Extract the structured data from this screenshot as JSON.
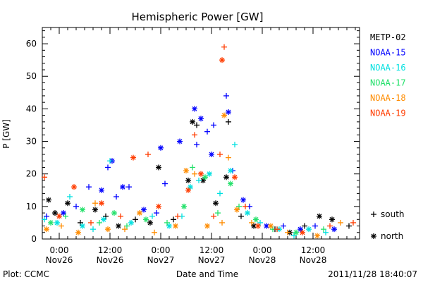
{
  "chart_data": {
    "type": "scatter",
    "title": "Hemispheric Power [GW]",
    "xlabel": "Date and Time",
    "ylabel": "P [GW]",
    "ylim": [
      0,
      65
    ],
    "xlim_hours_note_free": null,
    "xlim": [
      "2011-11-25 20:00",
      "2011-11-28 23:00"
    ],
    "yticks": [
      0,
      10,
      20,
      30,
      40,
      50,
      60
    ],
    "xticks": [
      {
        "time": "2011-11-26 00:00",
        "label": "0:00",
        "date": "Nov26"
      },
      {
        "time": "2011-11-26 12:00",
        "label": "12:00",
        "date": "Nov26"
      },
      {
        "time": "2011-11-27 00:00",
        "label": "0:00",
        "date": "Nov27"
      },
      {
        "time": "2011-11-27 12:00",
        "label": "12:00",
        "date": "Nov27"
      },
      {
        "time": "2011-11-28 00:00",
        "label": "0:00",
        "date": "Nov28"
      },
      {
        "time": "2011-11-28 12:00",
        "label": "12:00",
        "date": "Nov28"
      }
    ],
    "grid": false,
    "legend_position": "right",
    "marker_legend": [
      {
        "symbol": "+",
        "label": "south"
      },
      {
        "symbol": "*",
        "label": "north"
      }
    ],
    "series": [
      {
        "name": "METP-02",
        "color": "#000000",
        "points": [
          [
            "2011-11-25 21:30",
            12,
            "*"
          ],
          [
            "2011-11-25 23:00",
            8,
            "*"
          ],
          [
            "2011-11-26 02:00",
            11,
            "*"
          ],
          [
            "2011-11-26 05:00",
            5,
            "+"
          ],
          [
            "2011-11-26 08:30",
            9,
            "*"
          ],
          [
            "2011-11-26 11:00",
            7,
            "+"
          ],
          [
            "2011-11-26 14:00",
            4,
            "*"
          ],
          [
            "2011-11-26 18:00",
            6,
            "+"
          ],
          [
            "2011-11-26 21:30",
            5,
            "*"
          ],
          [
            "2011-11-26 23:30",
            22,
            "*"
          ],
          [
            "2011-11-27 03:00",
            6,
            "+"
          ],
          [
            "2011-11-27 06:30",
            18,
            "*"
          ],
          [
            "2011-11-27 07:30",
            36,
            "*"
          ],
          [
            "2011-11-27 08:30",
            35,
            "+"
          ],
          [
            "2011-11-27 10:00",
            18,
            "*"
          ],
          [
            "2011-11-27 13:00",
            11,
            "*"
          ],
          [
            "2011-11-27 15:30",
            19,
            "*"
          ],
          [
            "2011-11-27 16:00",
            36,
            "+"
          ],
          [
            "2011-11-27 19:00",
            7,
            "+"
          ],
          [
            "2011-11-27 22:00",
            4,
            "*"
          ],
          [
            "2011-11-28 03:00",
            3,
            "+"
          ],
          [
            "2011-11-28 06:30",
            2,
            "*"
          ],
          [
            "2011-11-28 10:00",
            4,
            "+"
          ],
          [
            "2011-11-28 13:30",
            7,
            "*"
          ],
          [
            "2011-11-28 16:30",
            6,
            "*"
          ],
          [
            "2011-11-28 20:30",
            4,
            "+"
          ]
        ]
      },
      {
        "name": "NOAA-15",
        "color": "#0000ff",
        "points": [
          [
            "2011-11-25 21:00",
            7,
            "+"
          ],
          [
            "2011-11-26 01:00",
            8,
            "*"
          ],
          [
            "2011-11-26 04:00",
            10,
            "+"
          ],
          [
            "2011-11-26 07:00",
            16,
            "+"
          ],
          [
            "2011-11-26 10:00",
            15,
            "*"
          ],
          [
            "2011-11-26 11:30",
            22,
            "+"
          ],
          [
            "2011-11-26 12:30",
            24,
            "*"
          ],
          [
            "2011-11-26 13:30",
            13,
            "+"
          ],
          [
            "2011-11-26 15:00",
            16,
            "*"
          ],
          [
            "2011-11-26 16:30",
            16,
            "+"
          ],
          [
            "2011-11-26 20:00",
            9,
            "*"
          ],
          [
            "2011-11-26 23:00",
            8,
            "+"
          ],
          [
            "2011-11-27 00:00",
            28,
            "*"
          ],
          [
            "2011-11-27 01:00",
            17,
            "+"
          ],
          [
            "2011-11-27 04:30",
            30,
            "*"
          ],
          [
            "2011-11-27 08:00",
            40,
            "*"
          ],
          [
            "2011-11-27 08:30",
            29,
            "+"
          ],
          [
            "2011-11-27 09:30",
            37,
            "*"
          ],
          [
            "2011-11-27 11:00",
            33,
            "+"
          ],
          [
            "2011-11-27 12:00",
            26,
            "*"
          ],
          [
            "2011-11-27 12:30",
            35,
            "+"
          ],
          [
            "2011-11-27 15:30",
            44,
            "+"
          ],
          [
            "2011-11-27 16:00",
            39,
            "*"
          ],
          [
            "2011-11-27 17:00",
            21,
            "+"
          ],
          [
            "2011-11-27 19:30",
            12,
            "*"
          ],
          [
            "2011-11-27 21:00",
            10,
            "+"
          ],
          [
            "2011-11-28 01:00",
            4,
            "*"
          ],
          [
            "2011-11-28 05:00",
            4,
            "+"
          ],
          [
            "2011-11-28 09:00",
            3,
            "*"
          ],
          [
            "2011-11-28 12:30",
            4,
            "+"
          ],
          [
            "2011-11-28 17:00",
            3,
            "*"
          ]
        ]
      },
      {
        "name": "NOAA-16",
        "color": "#00e0e0",
        "points": [
          [
            "2011-11-25 20:30",
            6,
            "+"
          ],
          [
            "2011-11-25 23:30",
            5,
            "*"
          ],
          [
            "2011-11-26 02:30",
            13,
            "+"
          ],
          [
            "2011-11-26 05:30",
            4,
            "*"
          ],
          [
            "2011-11-26 08:00",
            3,
            "+"
          ],
          [
            "2011-11-26 10:30",
            6,
            "*"
          ],
          [
            "2011-11-26 12:00",
            24,
            "+"
          ],
          [
            "2011-11-26 17:00",
            5,
            "*"
          ],
          [
            "2011-11-26 22:00",
            7,
            "+"
          ],
          [
            "2011-11-27 02:00",
            4,
            "*"
          ],
          [
            "2011-11-27 05:00",
            7,
            "+"
          ],
          [
            "2011-11-27 07:00",
            16,
            "*"
          ],
          [
            "2011-11-27 09:00",
            18,
            "+"
          ],
          [
            "2011-11-27 11:30",
            20,
            "*"
          ],
          [
            "2011-11-27 14:00",
            14,
            "+"
          ],
          [
            "2011-11-27 16:30",
            21,
            "*"
          ],
          [
            "2011-11-27 17:30",
            29,
            "+"
          ],
          [
            "2011-11-27 20:30",
            8,
            "*"
          ],
          [
            "2011-11-27 23:30",
            5,
            "+"
          ],
          [
            "2011-11-28 04:00",
            3,
            "*"
          ],
          [
            "2011-11-28 07:30",
            1,
            "+"
          ],
          [
            "2011-11-28 11:00",
            3,
            "*"
          ],
          [
            "2011-11-28 15:00",
            2,
            "+"
          ]
        ]
      },
      {
        "name": "NOAA-17",
        "color": "#22e06a",
        "points": [
          [
            "2011-11-25 22:00",
            5,
            "*"
          ],
          [
            "2011-11-26 01:30",
            7,
            "+"
          ],
          [
            "2011-11-26 05:30",
            9,
            "*"
          ],
          [
            "2011-11-26 09:30",
            5,
            "+"
          ],
          [
            "2011-11-26 13:00",
            8,
            "*"
          ],
          [
            "2011-11-26 16:00",
            4,
            "+"
          ],
          [
            "2011-11-26 20:30",
            6,
            "*"
          ],
          [
            "2011-11-27 01:30",
            5,
            "+"
          ],
          [
            "2011-11-27 05:30",
            10,
            "*"
          ],
          [
            "2011-11-27 07:30",
            22,
            "+"
          ],
          [
            "2011-11-27 10:30",
            19,
            "*"
          ],
          [
            "2011-11-27 13:30",
            8,
            "+"
          ],
          [
            "2011-11-27 16:30",
            17,
            "*"
          ],
          [
            "2011-11-27 18:30",
            10,
            "+"
          ],
          [
            "2011-11-27 22:30",
            6,
            "*"
          ],
          [
            "2011-11-28 02:30",
            3,
            "+"
          ],
          [
            "2011-11-28 08:00",
            2,
            "*"
          ],
          [
            "2011-11-28 14:30",
            3,
            "+"
          ]
        ]
      },
      {
        "name": "NOAA-18",
        "color": "#ff8c00",
        "points": [
          [
            "2011-11-25 21:00",
            3,
            "*"
          ],
          [
            "2011-11-26 00:30",
            4,
            "+"
          ],
          [
            "2011-11-26 04:30",
            2,
            "*"
          ],
          [
            "2011-11-26 08:30",
            11,
            "+"
          ],
          [
            "2011-11-26 11:30",
            3,
            "*"
          ],
          [
            "2011-11-26 15:30",
            3,
            "+"
          ],
          [
            "2011-11-26 19:00",
            8,
            "*"
          ],
          [
            "2011-11-26 22:30",
            2,
            "+"
          ],
          [
            "2011-11-27 03:30",
            4,
            "*"
          ],
          [
            "2011-11-27 06:00",
            21,
            "*"
          ],
          [
            "2011-11-27 08:00",
            20,
            "+"
          ],
          [
            "2011-11-27 11:00",
            4,
            "*"
          ],
          [
            "2011-11-27 14:30",
            5,
            "+"
          ],
          [
            "2011-11-27 15:00",
            38,
            "*"
          ],
          [
            "2011-11-27 16:00",
            25,
            "+"
          ],
          [
            "2011-11-27 18:00",
            9,
            "*"
          ],
          [
            "2011-11-27 21:30",
            5,
            "+"
          ],
          [
            "2011-11-28 02:00",
            4,
            "*"
          ],
          [
            "2011-11-28 06:00",
            2,
            "+"
          ],
          [
            "2011-11-28 13:00",
            1,
            "*"
          ],
          [
            "2011-11-28 18:30",
            5,
            "+"
          ]
        ]
      },
      {
        "name": "NOAA-19",
        "color": "#ff3c00",
        "points": [
          [
            "2011-11-25 20:30",
            19,
            "+"
          ],
          [
            "2011-11-26 00:00",
            7,
            "*"
          ],
          [
            "2011-11-26 03:30",
            16,
            "*"
          ],
          [
            "2011-11-26 07:30",
            5,
            "+"
          ],
          [
            "2011-11-26 10:00",
            11,
            "*"
          ],
          [
            "2011-11-26 14:30",
            7,
            "+"
          ],
          [
            "2011-11-26 17:30",
            25,
            "*"
          ],
          [
            "2011-11-26 21:00",
            26,
            "+"
          ],
          [
            "2011-11-26 23:30",
            10,
            "*"
          ],
          [
            "2011-11-27 04:00",
            7,
            "+"
          ],
          [
            "2011-11-27 06:30",
            15,
            "*"
          ],
          [
            "2011-11-27 08:00",
            32,
            "+"
          ],
          [
            "2011-11-27 09:30",
            20,
            "*"
          ],
          [
            "2011-11-27 12:30",
            7,
            "+"
          ],
          [
            "2011-11-27 14:00",
            26,
            "+"
          ],
          [
            "2011-11-27 14:30",
            55,
            "*"
          ],
          [
            "2011-11-27 15:00",
            59,
            "+"
          ],
          [
            "2011-11-27 17:30",
            19,
            "*"
          ],
          [
            "2011-11-27 20:00",
            10,
            "+"
          ],
          [
            "2011-11-27 23:00",
            4,
            "*"
          ],
          [
            "2011-11-28 03:30",
            3,
            "+"
          ],
          [
            "2011-11-28 09:30",
            2,
            "*"
          ],
          [
            "2011-11-28 16:00",
            4,
            "+"
          ],
          [
            "2011-11-28 21:30",
            5,
            "+"
          ]
        ]
      }
    ]
  },
  "footer": {
    "plot_credit": "Plot: CCMC",
    "timestamp": "2011/11/28 18:40:07"
  }
}
